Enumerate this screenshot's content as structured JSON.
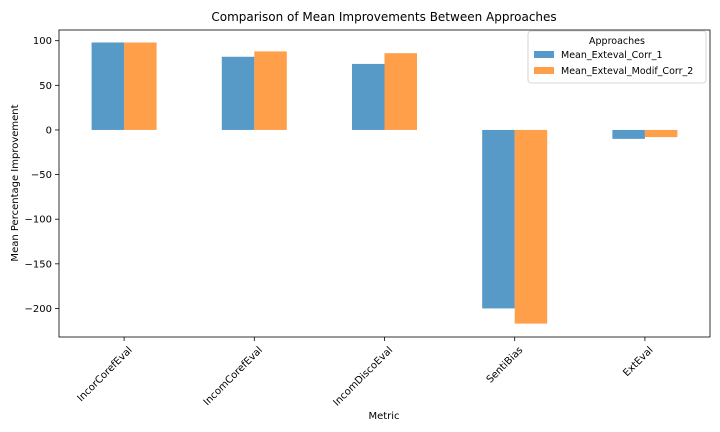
{
  "chart_data": {
    "type": "bar",
    "title": "Comparison of Mean Improvements Between Approaches",
    "xlabel": "Metric",
    "ylabel": "Mean Percentage Improvement",
    "categories": [
      "IncorCorefEval",
      "IncomCorefEval",
      "IncomDiscoEval",
      "SentiBias",
      "ExtEval"
    ],
    "series": [
      {
        "name": "Mean_Exteval_Corr_1",
        "color": "#1f77b4",
        "values": [
          98,
          82,
          74,
          -200,
          -10
        ]
      },
      {
        "name": "Mean_Exteval_Modif_Corr_2",
        "color": "#ff7f0e",
        "values": [
          98,
          88,
          86,
          -217,
          -8
        ]
      }
    ],
    "ylim": [
      -232,
      112
    ],
    "yticks": [
      100,
      50,
      0,
      -50,
      -100,
      -150,
      -200
    ],
    "ytick_labels": [
      "100",
      "50",
      "0",
      "−50",
      "−100",
      "−150",
      "−200"
    ],
    "legend": {
      "title": "Approaches",
      "position": "upper right"
    },
    "grid": false,
    "bar_opacity": 0.75,
    "tick_label_rotation": 45
  }
}
